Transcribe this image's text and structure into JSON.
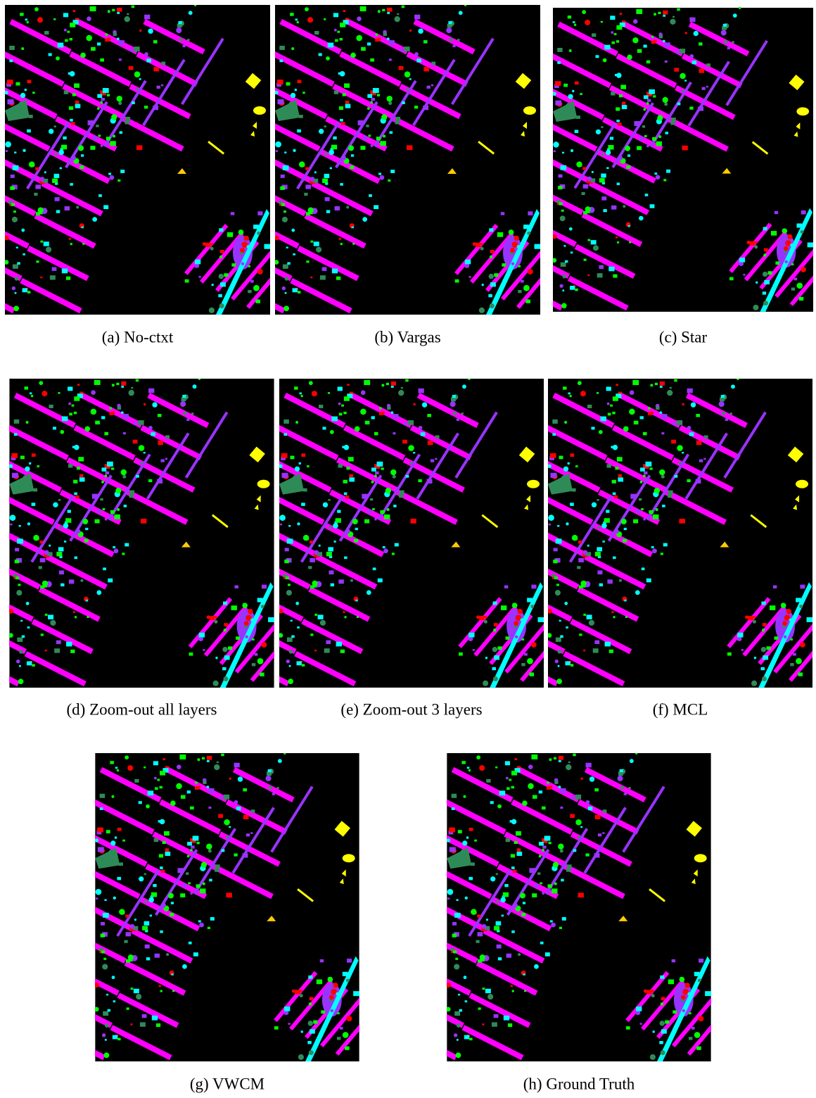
{
  "figures": [
    {
      "caption": "(a) No-ctxt"
    },
    {
      "caption": "(b) Vargas"
    },
    {
      "caption": "(c) Star"
    },
    {
      "caption": "(d) Zoom-out all layers"
    },
    {
      "caption": "(e) Zoom-out 3 layers"
    },
    {
      "caption": "(f) MCL"
    },
    {
      "caption": "(g) VWCM"
    },
    {
      "caption": "(h) Ground Truth"
    }
  ]
}
